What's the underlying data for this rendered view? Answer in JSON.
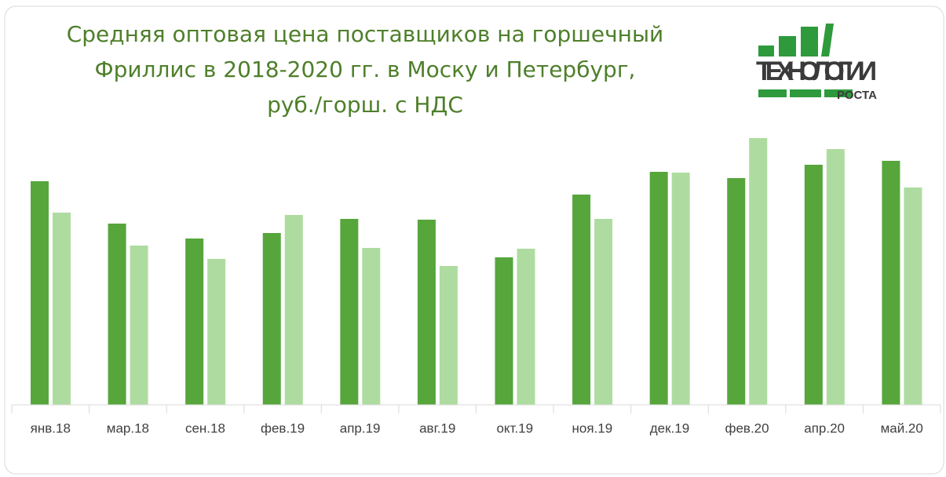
{
  "chart_data": {
    "type": "bar",
    "title": [
      "Средняя оптовая цена поставщиков на горшечный",
      "Фриллис в 2018-2020 гг. в Моску и Петербург,",
      "руб./горш. с НДС"
    ],
    "categories": [
      "янв.18",
      "мар.18",
      "сен.18",
      "фев.19",
      "апр.19",
      "авг.19",
      "окт.19",
      "ноя.19",
      "дек.19",
      "фев.20",
      "апр.20",
      "май.20"
    ],
    "series": [
      {
        "color": "#56a63c",
        "values": [
          285,
          231,
          212,
          219,
          237,
          236,
          188,
          268,
          297,
          289,
          306,
          311
        ]
      },
      {
        "color": "#aedca0",
        "values": [
          245,
          203,
          186,
          242,
          200,
          177,
          199,
          237,
          296,
          340,
          326,
          277
        ]
      }
    ],
    "ylim": [
      0,
      350
    ],
    "grid": false
  },
  "logo": {
    "line1": "ТЕХНОЛОГИИ",
    "line2": "РОСТА"
  }
}
